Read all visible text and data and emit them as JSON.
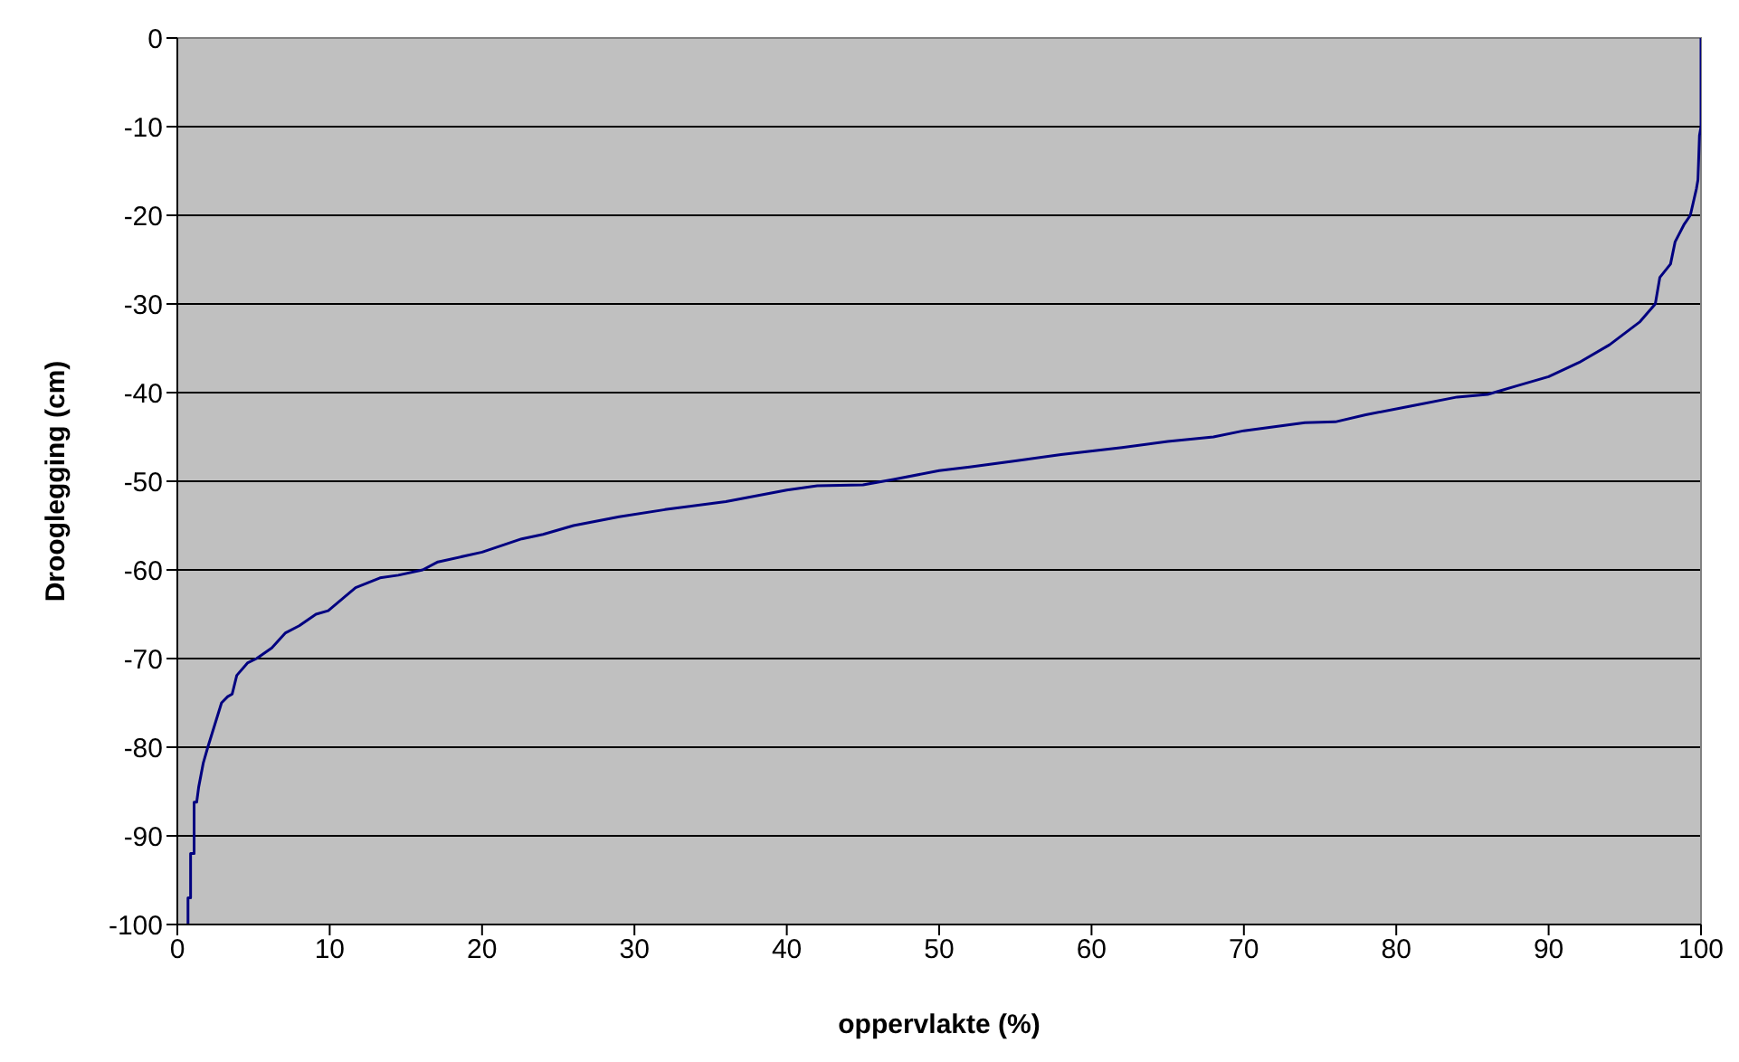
{
  "chart_data": {
    "type": "line",
    "xlabel": "oppervlakte (%)",
    "ylabel": "Drooglegging (cm)",
    "xlim": [
      0,
      100
    ],
    "xticks": [
      0,
      10,
      20,
      30,
      40,
      50,
      60,
      70,
      80,
      90,
      100
    ],
    "ylim": [
      -100,
      0
    ],
    "yticks": [
      -100,
      -90,
      -80,
      -70,
      -60,
      -50,
      -40,
      -30,
      -20,
      -10,
      0
    ],
    "grid": "y",
    "legend": false,
    "marker": "none",
    "line_style": "solid",
    "series": [
      {
        "color": "#000080",
        "x": [
          0.7,
          0.7,
          0.87,
          0.87,
          1.1,
          1.1,
          1.27,
          1.4,
          1.7,
          2.0,
          2.9,
          3.3,
          3.6,
          3.9,
          4.6,
          5.2,
          6.2,
          7.1,
          8.0,
          9.1,
          9.9,
          11.7,
          13.3,
          14.5,
          16.1,
          17.1,
          20,
          22.6,
          24,
          26,
          29,
          32,
          36,
          40,
          42,
          45,
          47,
          50,
          52,
          55,
          58,
          62,
          65,
          68,
          70,
          74,
          76,
          78,
          81,
          84,
          86,
          88,
          90,
          92,
          94,
          96,
          97,
          97.3,
          98,
          98.3,
          98.9,
          99.3,
          99.7,
          99.8,
          99.9,
          100,
          100
        ],
        "values": [
          -100,
          -97,
          -97,
          -92,
          -92,
          -86.2,
          -86.2,
          -84.5,
          -81.8,
          -80,
          -75,
          -74.3,
          -74,
          -71.9,
          -70.5,
          -70,
          -68.8,
          -67.1,
          -66.3,
          -65,
          -64.6,
          -62,
          -60.9,
          -60.6,
          -60,
          -59.1,
          -58,
          -56.5,
          -56,
          -55,
          -54,
          -53.2,
          -52.3,
          -51,
          -50.5,
          -50.4,
          -49.8,
          -48.8,
          -48.4,
          -47.7,
          -47,
          -46.2,
          -45.5,
          -45,
          -44.3,
          -43.4,
          -43.3,
          -42.5,
          -41.5,
          -40.5,
          -40.2,
          -39.2,
          -38.2,
          -36.6,
          -34.6,
          -32,
          -30,
          -27,
          -25.5,
          -23,
          -21,
          -20,
          -17,
          -16,
          -11,
          -10,
          0
        ]
      }
    ]
  }
}
